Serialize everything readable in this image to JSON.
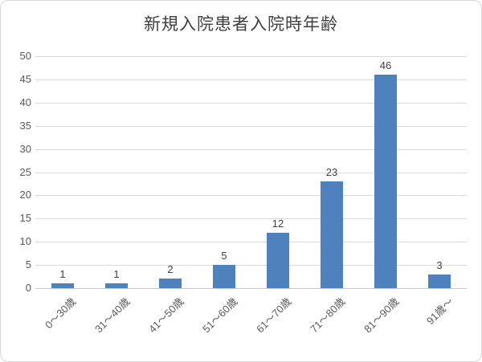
{
  "chart_data": {
    "type": "bar",
    "title": "新規入院患者入院時年齢",
    "categories": [
      "0～30歳",
      "31～40歳",
      "41～50歳",
      "51～60歳",
      "61～70歳",
      "71～80歳",
      "81～90歳",
      "91歳～"
    ],
    "values": [
      1,
      1,
      2,
      5,
      12,
      23,
      46,
      3
    ],
    "data_labels": [
      "1",
      "1",
      "2",
      "5",
      "12",
      "23",
      "46",
      "3"
    ],
    "ylabel": "",
    "xlabel": "",
    "ylim": [
      0,
      50
    ],
    "ytick_step": 5,
    "ytick_labels": [
      "0",
      "5",
      "10",
      "15",
      "20",
      "25",
      "30",
      "35",
      "40",
      "45",
      "50"
    ],
    "grid": "horizontal",
    "legend": "none",
    "colors": {
      "bar_fill": "#4f81bd",
      "gridline": "#d9d9d9",
      "axis_line": "#c9c9c9",
      "title_text": "#3f3f3f",
      "tick_text": "#595959",
      "value_label_text": "#404040",
      "chart_border": "#d7d7d7",
      "background": "#ffffff"
    }
  }
}
